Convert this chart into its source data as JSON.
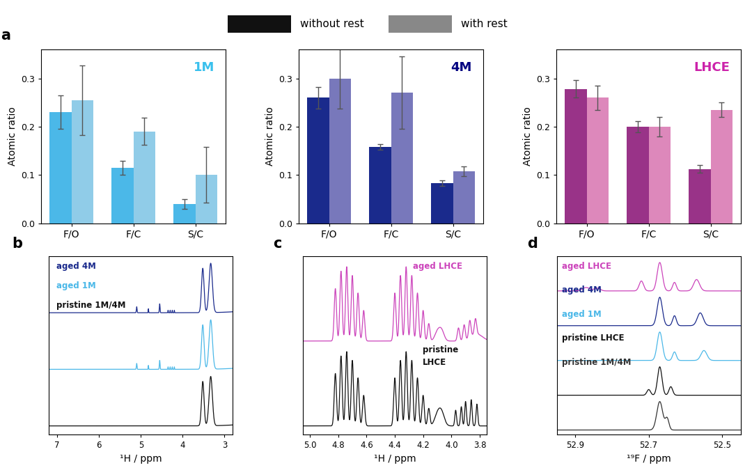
{
  "bar_categories": [
    "F/O",
    "F/C",
    "S/C"
  ],
  "bar_width": 0.35,
  "panel1M": {
    "label": "1M",
    "label_color": "#39C0ED",
    "dark_color": "#4BB8E8",
    "light_color": "#90CCE8",
    "without_rest": [
      0.23,
      0.115,
      0.04
    ],
    "with_rest": [
      0.255,
      0.19,
      0.1
    ],
    "err_without": [
      0.034,
      0.014,
      0.01
    ],
    "err_with": [
      0.072,
      0.028,
      0.058
    ]
  },
  "panel4M": {
    "label": "4M",
    "label_color": "#000080",
    "dark_color": "#1A2A8C",
    "light_color": "#7878BB",
    "without_rest": [
      0.26,
      0.158,
      0.083
    ],
    "with_rest": [
      0.3,
      0.27,
      0.108
    ],
    "err_without": [
      0.022,
      0.006,
      0.006
    ],
    "err_with": [
      0.062,
      0.075,
      0.01
    ]
  },
  "panelLHCE": {
    "label": "LHCE",
    "label_color": "#CC22AA",
    "dark_color": "#993388",
    "light_color": "#DD88BB",
    "without_rest": [
      0.278,
      0.2,
      0.112
    ],
    "with_rest": [
      0.26,
      0.2,
      0.235
    ],
    "err_without": [
      0.018,
      0.012,
      0.008
    ],
    "err_with": [
      0.025,
      0.02,
      0.015
    ]
  },
  "legend_without_color": "#111111",
  "legend_with_color": "#888888",
  "ylabel": "Atomic ratio",
  "ylim": [
    0,
    0.36
  ],
  "yticks": [
    0.0,
    0.1,
    0.2,
    0.3
  ],
  "panel_b_xlabel": "¹H / ppm",
  "panel_b_xlim": [
    7.2,
    2.8
  ],
  "panel_b_lines": [
    {
      "label": "aged 4M",
      "color": "#1A2A8C"
    },
    {
      "label": "aged 1M",
      "color": "#4BB8E8"
    },
    {
      "label": "pristine 1M/4M",
      "color": "#111111"
    }
  ],
  "panel_c_xlabel": "¹H / ppm",
  "panel_c_xlim": [
    5.05,
    3.75
  ],
  "panel_c_lines": [
    {
      "label": "aged LHCE",
      "color": "#CC44BB"
    },
    {
      "label": "pristine\nLHCE",
      "color": "#111111"
    }
  ],
  "panel_d_xlabel": "¹⁹F / ppm",
  "panel_d_xlim": [
    52.95,
    52.45
  ],
  "panel_d_lines": [
    {
      "label": "aged LHCE",
      "color": "#CC44BB"
    },
    {
      "label": "aged 4M",
      "color": "#1A2A8C"
    },
    {
      "label": "aged 1M",
      "color": "#4BB8E8"
    },
    {
      "label": "pristine LHCE",
      "color": "#111111"
    },
    {
      "label": "pristine 1M/4M",
      "color": "#333333"
    }
  ]
}
